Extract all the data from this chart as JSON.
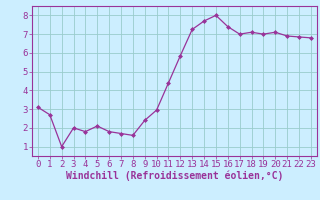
{
  "x": [
    0,
    1,
    2,
    3,
    4,
    5,
    6,
    7,
    8,
    9,
    10,
    11,
    12,
    13,
    14,
    15,
    16,
    17,
    18,
    19,
    20,
    21,
    22,
    23
  ],
  "y": [
    3.1,
    2.7,
    1.0,
    2.0,
    1.8,
    2.1,
    1.8,
    1.7,
    1.6,
    2.4,
    2.95,
    4.4,
    5.85,
    7.25,
    7.7,
    8.0,
    7.4,
    7.0,
    7.1,
    7.0,
    7.1,
    6.9,
    6.85,
    6.8
  ],
  "line_color": "#993399",
  "marker": "D",
  "marker_size": 2,
  "bg_color": "#cceeff",
  "grid_color": "#99cccc",
  "xlabel": "Windchill (Refroidissement éolien,°C)",
  "xlabel_color": "#993399",
  "tick_color": "#993399",
  "spine_color": "#993399",
  "ylim": [
    0.5,
    8.5
  ],
  "xlim": [
    -0.5,
    23.5
  ],
  "yticks": [
    1,
    2,
    3,
    4,
    5,
    6,
    7,
    8
  ],
  "xticks": [
    0,
    1,
    2,
    3,
    4,
    5,
    6,
    7,
    8,
    9,
    10,
    11,
    12,
    13,
    14,
    15,
    16,
    17,
    18,
    19,
    20,
    21,
    22,
    23
  ],
  "tick_fontsize": 6.5,
  "xlabel_fontsize": 7
}
